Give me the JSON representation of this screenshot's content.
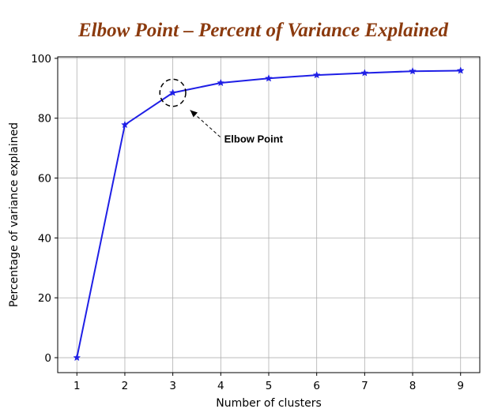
{
  "colors": {
    "title": "#8B3A0E",
    "series": "#1f1fe6",
    "grid": "#b0b0b0",
    "axis": "#000000"
  },
  "chart_data": {
    "type": "line",
    "title": "Elbow Point – Percent of Variance Explained",
    "xlabel": "Number of clusters",
    "ylabel": "Percentage of variance explained",
    "x": [
      1,
      2,
      3,
      4,
      5,
      6,
      7,
      8,
      9
    ],
    "xticks": [
      "1",
      "2",
      "3",
      "4",
      "5",
      "6",
      "7",
      "8",
      "9"
    ],
    "yticks": [
      "0",
      "20",
      "40",
      "60",
      "80",
      "100"
    ],
    "xlim": [
      0.6,
      9.4
    ],
    "ylim": [
      -5,
      100.5
    ],
    "grid": true,
    "marker": "star",
    "series": [
      {
        "values": [
          0,
          77.8,
          88.5,
          91.8,
          93.3,
          94.4,
          95.1,
          95.7,
          95.9
        ]
      }
    ],
    "annotations": [
      {
        "text": "Elbow Point",
        "x": 3,
        "y": 88.5,
        "circle_radius": 0.27
      }
    ]
  }
}
